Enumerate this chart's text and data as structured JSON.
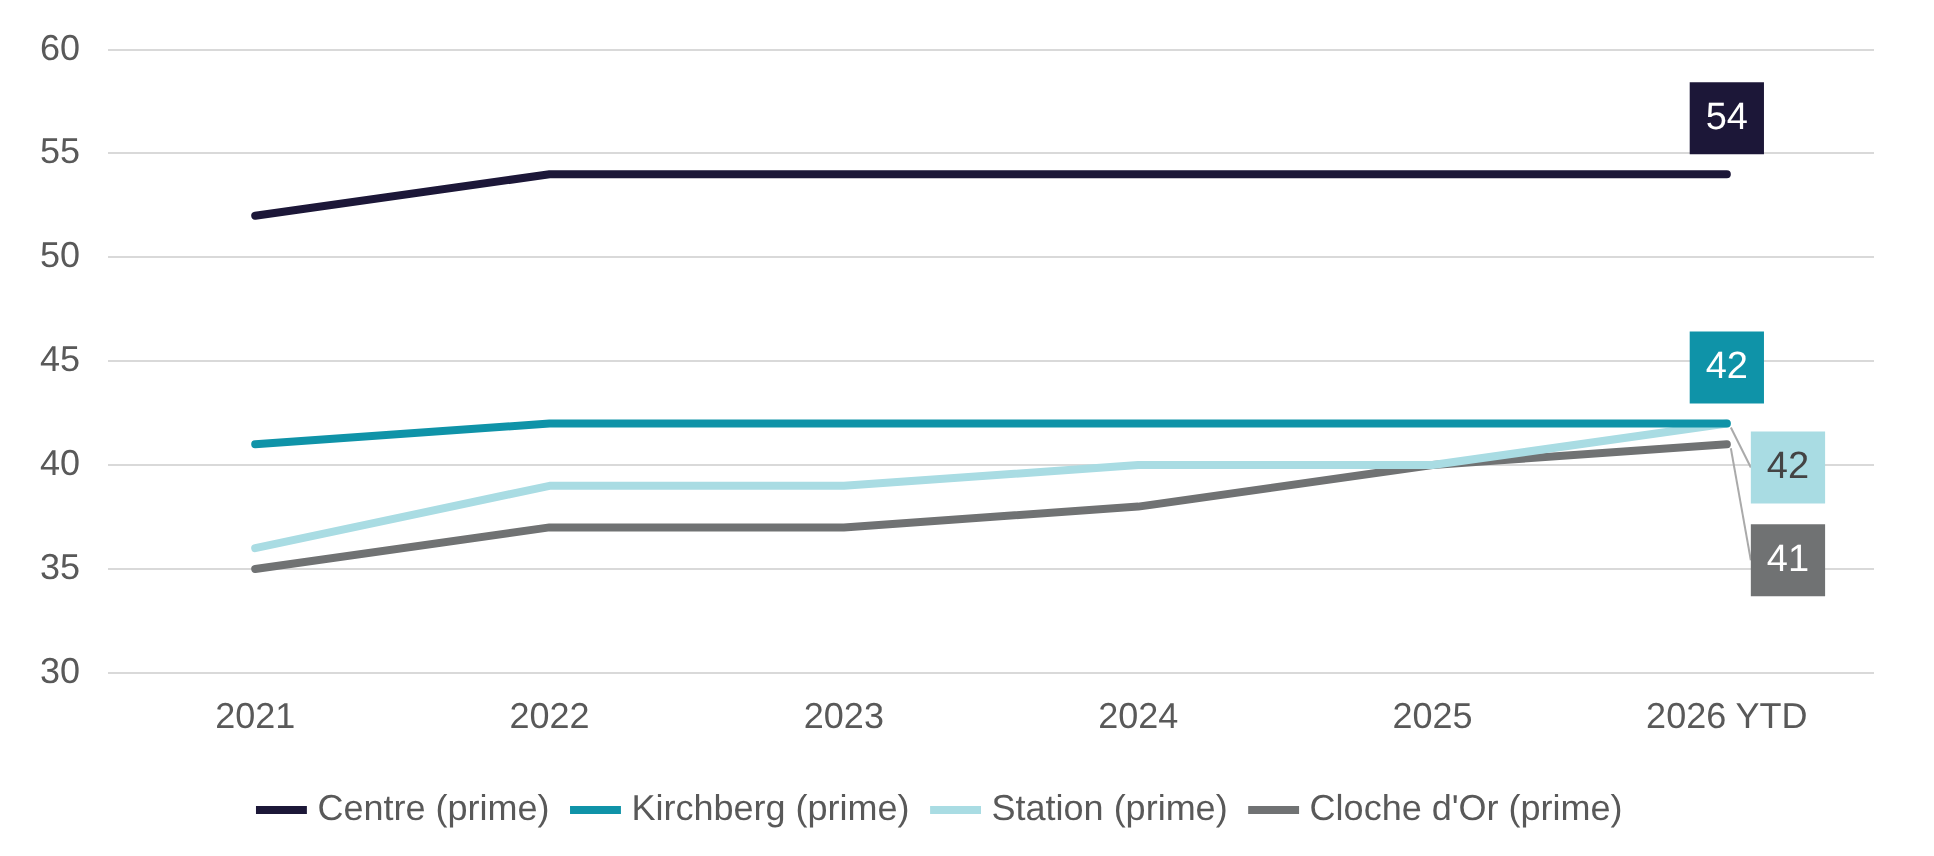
{
  "chart_data": {
    "type": "line",
    "categories": [
      "2021",
      "2022",
      "2023",
      "2024",
      "2025",
      "2026 YTD"
    ],
    "series": [
      {
        "name": "Centre (prime)",
        "color": "#1c1738",
        "values": [
          52,
          54,
          54,
          54,
          54,
          54
        ],
        "value_labels": [
          null,
          null,
          null,
          null,
          null,
          "54"
        ]
      },
      {
        "name": "Kirchberg (prime)",
        "color": "#0f93a8",
        "values": [
          41,
          42,
          42,
          42,
          42,
          42
        ],
        "value_labels": [
          null,
          null,
          null,
          null,
          null,
          "42"
        ]
      },
      {
        "name": "Station (prime)",
        "color": "#a9dce3",
        "values": [
          36,
          39,
          39,
          40,
          40,
          42
        ],
        "value_labels": [
          null,
          null,
          null,
          null,
          null,
          "42"
        ]
      },
      {
        "name": "Cloche d'Or (prime)",
        "color": "#707273",
        "values": [
          35,
          37,
          37,
          38,
          40,
          41
        ],
        "value_labels": [
          null,
          null,
          null,
          null,
          null,
          "41"
        ]
      }
    ],
    "ylim": [
      30,
      60
    ],
    "yticks": [
      30,
      35,
      40,
      45,
      50,
      55,
      60
    ],
    "grid": "y",
    "legend": "bottom",
    "marker": "none",
    "line_style": "solid"
  }
}
